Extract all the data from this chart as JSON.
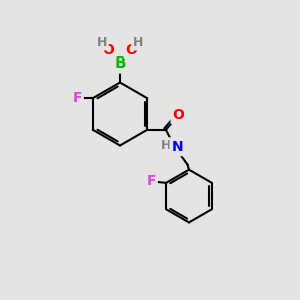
{
  "bg_color": "#e4e4e4",
  "bond_color": "#000000",
  "bond_width": 1.5,
  "atom_colors": {
    "B": "#00bb00",
    "O": "#ff0000",
    "H": "#808080",
    "F": "#dd44dd",
    "N": "#0000ee",
    "O_carbonyl": "#ff0000"
  }
}
